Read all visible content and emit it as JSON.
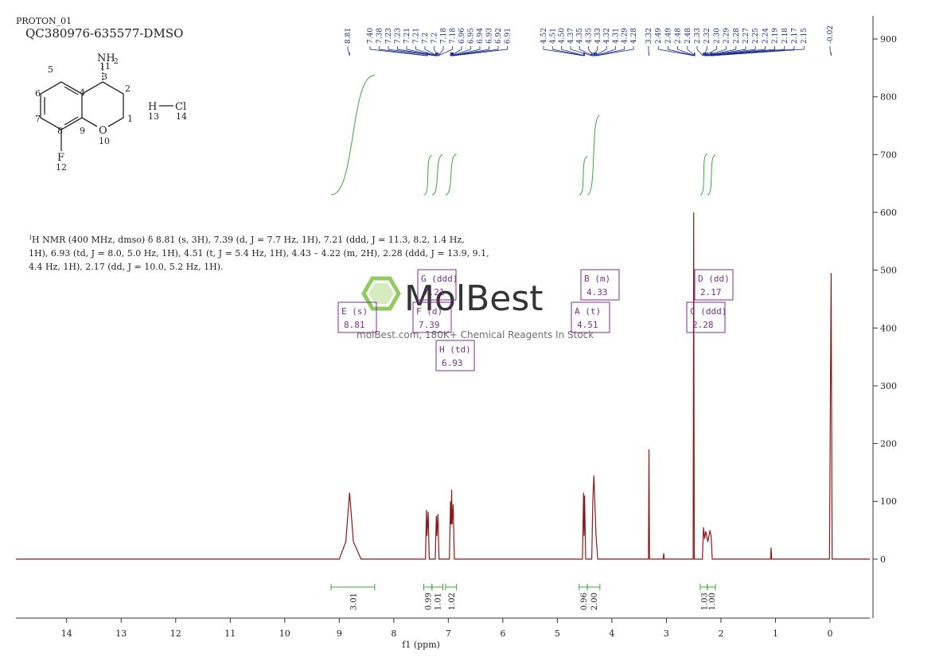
{
  "header": {
    "run": "PROTON_01",
    "sample": "QC380976-635577-DMSO"
  },
  "molecule": {
    "atom_numbers": [
      "1",
      "2",
      "3",
      "4",
      "5",
      "6",
      "7",
      "8",
      "9",
      "10",
      "11",
      "12",
      "13",
      "14"
    ],
    "atom_symbols": [
      "NH",
      "2",
      "O",
      "F",
      "H",
      "Cl"
    ]
  },
  "nmr_text": {
    "superscript": "1",
    "lines": [
      "H NMR (400 MHz, dmso) δ 8.81 (s, 3H), 7.39 (d, J = 7.7 Hz, 1H), 7.21 (ddd, J = 11.3, 8.2, 1.4 Hz,",
      "1H), 6.93 (td, J = 8.0, 5.0 Hz, 1H), 4.51 (t, J = 5.4 Hz, 1H), 4.43 – 4.22 (m, 2H), 2.28 (ddd, J = 13.9, 9.1,",
      "4.4 Hz, 1H), 2.17 (dd, J = 10.0, 5.2 Hz, 1H)."
    ]
  },
  "watermark": {
    "brand": "MolBest",
    "tagline": "molBest.com, 180K+ Chemical Reagents In Stock"
  },
  "chart_data": {
    "type": "line",
    "x_label": "f1 (ppm)",
    "color": "#8b1a1a",
    "xlim": [
      14.93,
      -0.73
    ],
    "xticks": [
      14,
      13,
      12,
      11,
      10,
      9,
      8,
      7,
      6,
      5,
      4,
      3,
      2,
      1,
      0
    ],
    "ylim": [
      -102,
      940
    ],
    "yticks": [
      0,
      100,
      200,
      300,
      400,
      500,
      600,
      700,
      800,
      900
    ],
    "x": [
      14.93,
      9.0,
      8.88,
      8.81,
      8.74,
      8.6,
      7.42,
      7.4,
      7.39,
      7.37,
      7.35,
      7.24,
      7.22,
      7.21,
      7.19,
      7.17,
      6.98,
      6.96,
      6.95,
      6.94,
      6.93,
      6.91,
      6.89,
      4.54,
      4.52,
      4.51,
      4.5,
      4.48,
      4.37,
      4.35,
      4.33,
      4.31,
      4.29,
      4.26,
      3.33,
      3.32,
      3.31,
      3.06,
      3.05,
      3.04,
      2.51,
      2.5,
      2.49,
      2.34,
      2.32,
      2.3,
      2.28,
      2.26,
      2.24,
      2.2,
      2.18,
      2.16,
      1.09,
      1.08,
      1.07,
      0.01,
      -0.02,
      -0.04,
      -0.73
    ],
    "values": [
      0,
      0,
      30,
      115,
      30,
      0,
      0,
      85,
      40,
      82,
      0,
      0,
      75,
      40,
      78,
      0,
      0,
      100,
      60,
      120,
      60,
      95,
      0,
      0,
      115,
      40,
      110,
      0,
      0,
      100,
      145,
      90,
      40,
      0,
      0,
      190,
      0,
      0,
      10,
      0,
      0,
      600,
      0,
      0,
      55,
      35,
      48,
      40,
      30,
      50,
      40,
      0,
      0,
      20,
      0,
      0,
      495,
      0,
      0
    ],
    "peak_label_groups": [
      [
        8.81
      ],
      [
        {
          "value": 7.4,
          "label": "7.40"
        },
        7.38,
        7.23,
        7.23,
        7.21,
        7.21,
        7.2,
        7.2,
        7.18,
        7.18,
        6.96,
        6.95,
        6.94,
        6.93,
        6.92,
        6.91
      ],
      [
        4.52,
        4.51,
        {
          "value": 4.5,
          "label": "4.50"
        },
        4.37,
        4.35,
        4.35,
        4.33,
        4.32,
        4.31,
        4.29,
        4.28
      ],
      [
        3.32,
        2.49,
        2.49,
        2.48,
        2.48,
        2.33,
        2.32,
        {
          "value": 2.3,
          "label": "2.30"
        },
        2.29,
        2.28,
        2.27,
        2.25,
        2.24,
        2.19,
        2.18,
        2.17,
        2.15
      ],
      [
        -0.02
      ]
    ],
    "integral_ranges": [
      [
        9.15,
        8.35
      ],
      [
        7.45,
        7.3
      ],
      [
        7.3,
        7.1
      ],
      [
        7.05,
        6.85
      ],
      [
        4.6,
        4.45
      ],
      [
        4.45,
        4.22
      ],
      [
        2.38,
        2.25
      ],
      [
        2.25,
        2.1
      ]
    ],
    "integral_values": [
      3.01,
      0.99,
      1.01,
      1.02,
      0.96,
      {
        "value": 2,
        "label": "2.00"
      },
      1.03,
      {
        "value": 1,
        "label": "1.00"
      }
    ],
    "multiplets": [
      {
        "name": "E (s)",
        "shift": "8.81"
      },
      {
        "name": "F (d)",
        "shift": "7.39"
      },
      {
        "name": "G (ddd)",
        "shift": "7.21"
      },
      {
        "name": "H (td)",
        "shift": "6.93"
      },
      {
        "name": "A (t)",
        "shift": "4.51"
      },
      {
        "name": "B (m)",
        "shift": "4.33"
      },
      {
        "name": "C (ddd)",
        "shift": "2.28"
      },
      {
        "name": "D (dd)",
        "shift": "2.17"
      }
    ]
  }
}
